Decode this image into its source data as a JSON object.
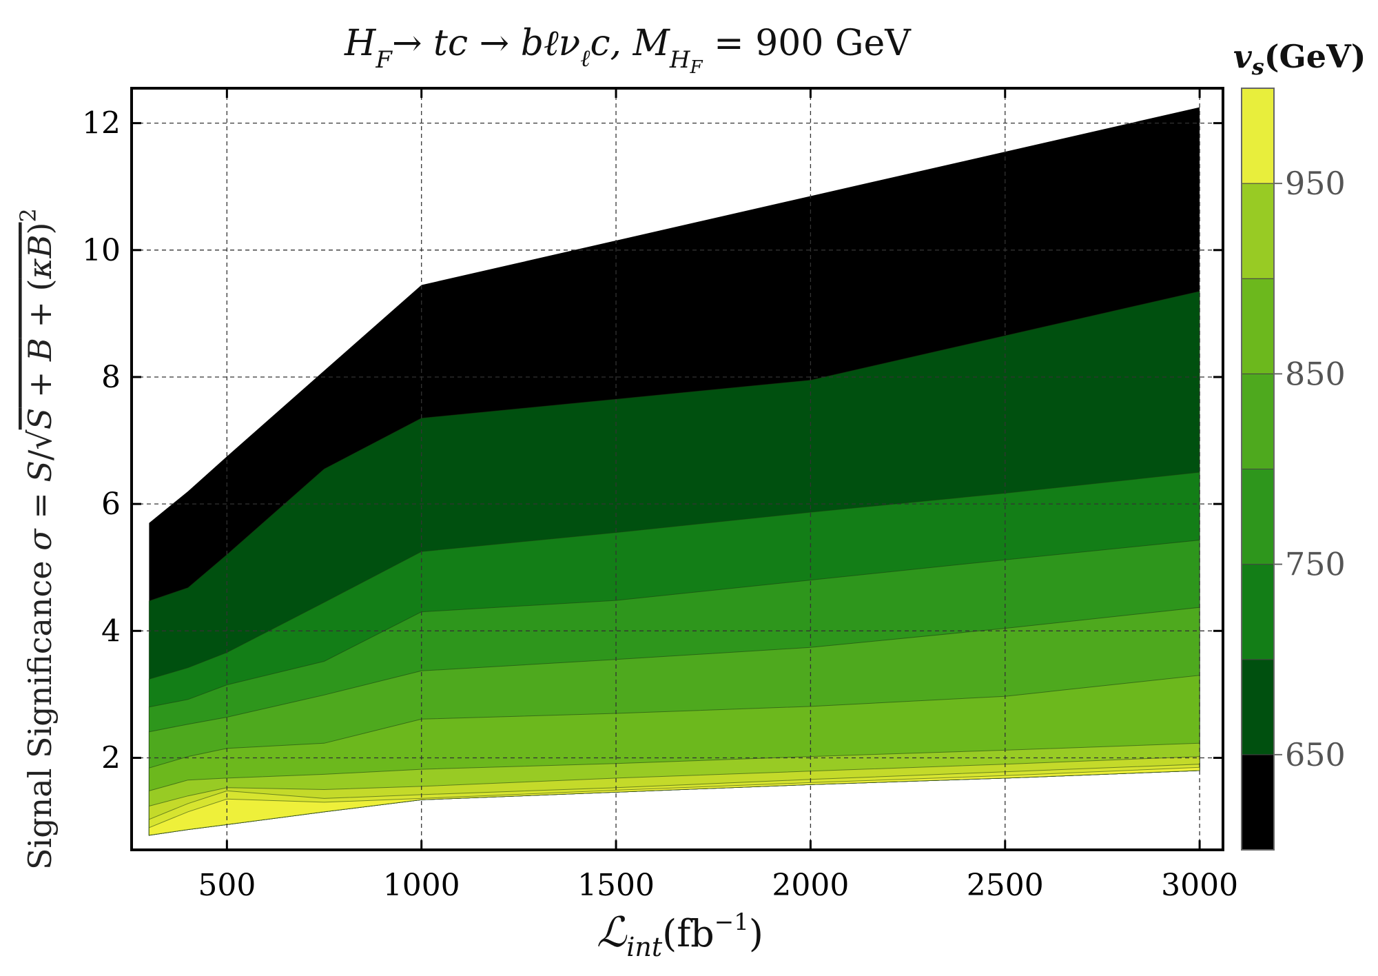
{
  "chart_data": {
    "type": "area",
    "title": "H_F→ tc → bℓν_ℓc, M_{H_F} = 900 GeV",
    "xlabel": "ℒ_int(fb⁻¹)",
    "ylabel": "Signal Significance σ = S/√(S + B + (κB)²)",
    "xlim": [
      255,
      3060
    ],
    "ylim": [
      0.55,
      12.55
    ],
    "x_ticks": [
      500,
      1000,
      1500,
      2000,
      2500,
      3000
    ],
    "x_tick_labels": [
      "500",
      "1000",
      "1500",
      "2000",
      "2500",
      "3000"
    ],
    "y_ticks": [
      2,
      4,
      6,
      8,
      10,
      12
    ],
    "y_tick_labels": [
      "2",
      "4",
      "6",
      "8",
      "10",
      "12"
    ],
    "grid": true,
    "x": [
      300,
      400,
      500,
      750,
      1000,
      1500,
      2000,
      2500,
      3000
    ],
    "bottom": [
      0.78,
      0.87,
      0.95,
      1.15,
      1.34,
      1.46,
      1.58,
      1.68,
      1.8
    ],
    "series": [
      {
        "name": "650",
        "color": "#000000",
        "values": [
          5.7,
          6.2,
          6.75,
          8.1,
          9.45,
          10.15,
          10.85,
          11.55,
          12.25
        ]
      },
      {
        "name": "675",
        "color": "#00500f",
        "values": [
          4.47,
          4.68,
          5.2,
          6.55,
          7.35,
          7.65,
          7.95,
          8.65,
          9.35
        ]
      },
      {
        "name": "700",
        "color": "#137e17",
        "values": [
          3.24,
          3.42,
          3.66,
          4.45,
          5.25,
          5.55,
          5.87,
          6.17,
          6.5
        ]
      },
      {
        "name": "725",
        "color": "#2e961c",
        "values": [
          2.8,
          2.92,
          3.15,
          3.52,
          4.3,
          4.48,
          4.8,
          5.12,
          5.43
        ]
      },
      {
        "name": "750",
        "color": "#4ea91e",
        "values": [
          2.41,
          2.53,
          2.64,
          2.99,
          3.37,
          3.55,
          3.74,
          4.04,
          4.37
        ]
      },
      {
        "name": "800",
        "color": "#6cb81d",
        "values": [
          1.84,
          2.02,
          2.15,
          2.23,
          2.61,
          2.7,
          2.81,
          2.97,
          3.3
        ]
      },
      {
        "name": "850",
        "color": "#98cb24",
        "values": [
          1.48,
          1.65,
          1.68,
          1.74,
          1.82,
          1.91,
          2.02,
          2.12,
          2.23
        ]
      },
      {
        "name": "900",
        "color": "#c4da2a",
        "values": [
          1.24,
          1.4,
          1.53,
          1.5,
          1.55,
          1.68,
          1.79,
          1.9,
          2.02
        ]
      },
      {
        "name": "950",
        "color": "#d7e430",
        "values": [
          1.03,
          1.28,
          1.48,
          1.36,
          1.42,
          1.53,
          1.66,
          1.78,
          1.9
        ]
      },
      {
        "name": "1000",
        "color": "#eef03a",
        "values": [
          0.9,
          1.15,
          1.35,
          1.3,
          1.36,
          1.49,
          1.61,
          1.72,
          1.85
        ]
      }
    ],
    "colorbar": {
      "title": "v_s(GeV)",
      "range": [
        600,
        1000
      ],
      "tick_values": [
        650,
        750,
        850,
        950
      ],
      "tick_labels": [
        "650",
        "750",
        "850",
        "950"
      ],
      "bands": [
        {
          "from": 600,
          "to": 650,
          "color": "#000000"
        },
        {
          "from": 650,
          "to": 700,
          "color": "#00500f"
        },
        {
          "from": 700,
          "to": 750,
          "color": "#137e17"
        },
        {
          "from": 750,
          "to": 800,
          "color": "#2e961c"
        },
        {
          "from": 800,
          "to": 850,
          "color": "#4ea91e"
        },
        {
          "from": 850,
          "to": 900,
          "color": "#6cb81d"
        },
        {
          "from": 900,
          "to": 950,
          "color": "#98cb24"
        },
        {
          "from": 950,
          "to": 1000,
          "color": "#e8ee3c"
        }
      ]
    }
  }
}
